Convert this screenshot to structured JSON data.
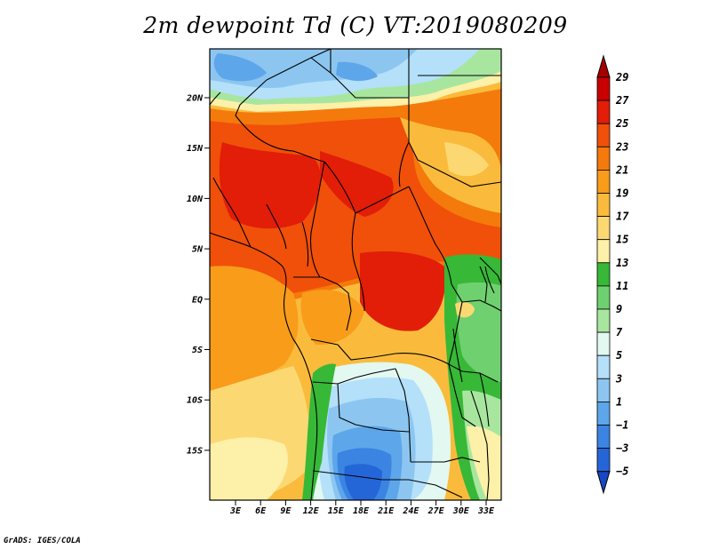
{
  "title": "2m dewpoint Td (C) VT:2019080209",
  "credit": "GrADS: IGES/COLA",
  "map": {
    "lat_labels": [
      "20N",
      "15N",
      "10N",
      "5N",
      "EQ",
      "5S",
      "10S",
      "15S"
    ],
    "lon_labels": [
      "3E",
      "6E",
      "9E",
      "12E",
      "15E",
      "18E",
      "21E",
      "24E",
      "27E",
      "30E",
      "33E"
    ]
  },
  "colorbar": {
    "labels": [
      "29",
      "27",
      "25",
      "23",
      "21",
      "19",
      "17",
      "15",
      "13",
      "11",
      "9",
      "7",
      "5",
      "3",
      "1",
      "−1",
      "−3",
      "−5"
    ],
    "colors": [
      "#a50000",
      "#c80000",
      "#e21d08",
      "#f0500a",
      "#f47a0c",
      "#f89c1a",
      "#fabb3c",
      "#fcd873",
      "#fdf0a8",
      "#37b837",
      "#6fd06f",
      "#a8e6a0",
      "#e2f8f0",
      "#b4e0fa",
      "#8cc6f0",
      "#5ea6ea",
      "#3c84e2",
      "#2466d8",
      "#1748c4"
    ]
  },
  "colors": {
    "dry_blue": "#3c84e2",
    "moist_red": "#f0500a"
  }
}
